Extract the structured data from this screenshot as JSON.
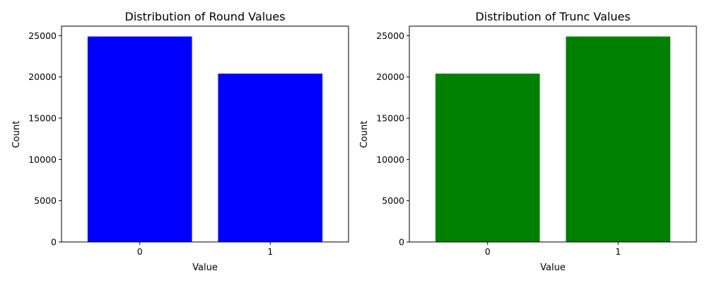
{
  "chart_data": [
    {
      "type": "bar",
      "title": "Distribution of Round Values",
      "xlabel": "Value",
      "ylabel": "Count",
      "categories": [
        "0",
        "1"
      ],
      "values": [
        24900,
        20400
      ],
      "color": "#0000ff",
      "ylim": [
        0,
        26150
      ],
      "yticks": [
        0,
        5000,
        10000,
        15000,
        20000,
        25000
      ],
      "grid": false
    },
    {
      "type": "bar",
      "title": "Distribution of Trunc Values",
      "xlabel": "Value",
      "ylabel": "Count",
      "categories": [
        "0",
        "1"
      ],
      "values": [
        20400,
        24900
      ],
      "color": "#008000",
      "ylim": [
        0,
        26150
      ],
      "yticks": [
        0,
        5000,
        10000,
        15000,
        20000,
        25000
      ],
      "grid": false
    }
  ]
}
